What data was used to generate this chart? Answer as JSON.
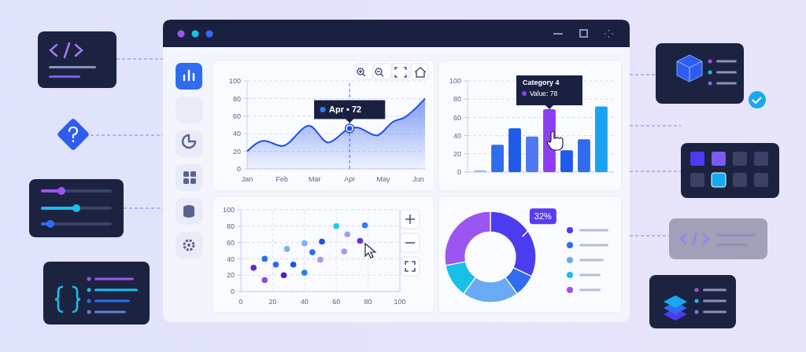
{
  "chart_data": [
    {
      "type": "area",
      "x": [
        "--01-01",
        "--01-16",
        "--02-01",
        "--02-25",
        "--03-13",
        "--04-01",
        "--04-07",
        "--04-25",
        "--05-10",
        "--05-19",
        "--06-07"
      ],
      "series": [
        {
          "color": "#1e4fe8",
          "values": [
            20,
            32,
            26,
            49,
            30,
            46,
            47,
            38,
            54,
            58,
            80
          ]
        }
      ],
      "xlim": [
        "--01-01",
        "--06-07"
      ],
      "xticks": [
        {
          "value": "--01-01",
          "label": "Jan"
        },
        {
          "value": "--02-01",
          "label": "Feb"
        },
        {
          "value": "--03-01",
          "label": "Mar"
        },
        {
          "value": "--04-01",
          "label": "Apr"
        },
        {
          "value": "--05-01",
          "label": "May"
        },
        {
          "value": "--06-01",
          "label": "Jun"
        }
      ],
      "ylim": [
        0,
        100
      ],
      "yticks": [
        0,
        20,
        40,
        60,
        80,
        100
      ],
      "grid": "y",
      "marker": "none",
      "line_style": "solid",
      "ref_lines": [
        {
          "axis": "x",
          "value": "--04-01",
          "color": "#4a6cf0",
          "line_style": "dashed"
        }
      ],
      "annotations": [
        {
          "text": "Apr • 72",
          "x": "--04-01",
          "y": 46
        }
      ]
    },
    {
      "type": "bar",
      "categories": [
        null,
        null,
        null,
        null,
        null,
        null,
        null,
        null
      ],
      "values": [
        2,
        30,
        48,
        39,
        69,
        24,
        36,
        72
      ],
      "colors": [
        "#9cbcf8",
        "#2f6cf0",
        "#1f5ae8",
        "#4f78f0",
        "#8b3ff0",
        "#1f5ae8",
        "#2f6cf0",
        "#1aa3f5"
      ],
      "ylim": [
        0,
        100
      ],
      "yticks": [
        0,
        20,
        40,
        60,
        80,
        100
      ],
      "grid": "y",
      "annotations": [
        "Category 4",
        "Value: 78"
      ]
    },
    {
      "type": "scatter",
      "x": [
        8,
        15,
        15,
        22,
        29,
        27,
        33,
        40,
        40,
        45,
        51,
        50,
        60,
        65,
        67,
        75,
        78
      ],
      "values": [
        29,
        14,
        40,
        33,
        52,
        20,
        33,
        23,
        59,
        48,
        61,
        39,
        80,
        49,
        70,
        62,
        81
      ],
      "colors": [
        "#5b2bd6",
        "#8a4af0",
        "#2f6cf0",
        "#2f6cf0",
        "#7fb0f5",
        "#4b1fd0",
        "#1e55e0",
        "#2f7cf0",
        "#7fb0f5",
        "#2f6cf0",
        "#1e55e0",
        "#a898f0",
        "#1ec8f0",
        "#a898f0",
        "#a898f0",
        "#6a2fe0",
        "#2f80f0"
      ],
      "xlim": [
        0,
        100
      ],
      "xticks": [
        0,
        20,
        40,
        60,
        80,
        100
      ],
      "ylim": [
        0,
        100
      ],
      "yticks": [
        0,
        20,
        40,
        60,
        80,
        100
      ],
      "grid": true,
      "marker": "circle"
    },
    {
      "type": "donut",
      "categories": [
        null,
        null,
        null,
        null,
        null
      ],
      "values": [
        32,
        8,
        20,
        12,
        28
      ],
      "colors": [
        "#4b3cf0",
        "#2f6cf0",
        "#6aaaf5",
        "#18c0e8",
        "#9b55f0"
      ],
      "value_labels": [
        "32%",
        null,
        null,
        null,
        null
      ]
    }
  ]
}
